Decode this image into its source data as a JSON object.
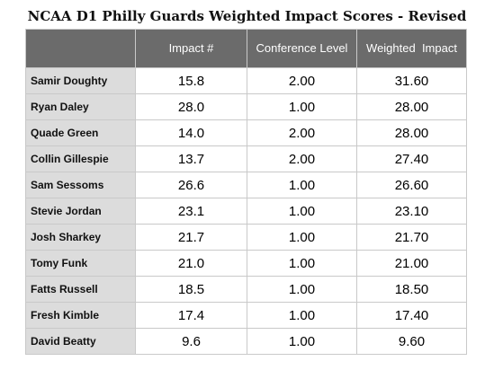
{
  "title": "NCAA D1 Philly Guards Weighted Impact Scores - Revised",
  "columns": [
    "",
    "Impact #",
    "Conference Level",
    "Weighted  Impact"
  ],
  "rows": [
    {
      "name": "Samir Doughty",
      "impact": "15.8",
      "level": "2.00",
      "weighted": "31.60"
    },
    {
      "name": "Ryan Daley",
      "impact": "28.0",
      "level": "1.00",
      "weighted": "28.00"
    },
    {
      "name": "Quade Green",
      "impact": "14.0",
      "level": "2.00",
      "weighted": "28.00"
    },
    {
      "name": "Collin Gillespie",
      "impact": "13.7",
      "level": "2.00",
      "weighted": "27.40"
    },
    {
      "name": "Sam Sessoms",
      "impact": "26.6",
      "level": "1.00",
      "weighted": "26.60"
    },
    {
      "name": "Stevie Jordan",
      "impact": "23.1",
      "level": "1.00",
      "weighted": "23.10"
    },
    {
      "name": "Josh Sharkey",
      "impact": "21.7",
      "level": "1.00",
      "weighted": "21.70"
    },
    {
      "name": "Tomy Funk",
      "impact": "21.0",
      "level": "1.00",
      "weighted": "21.00"
    },
    {
      "name": "Fatts Russell",
      "impact": "18.5",
      "level": "1.00",
      "weighted": "18.50"
    },
    {
      "name": "Fresh Kimble",
      "impact": "17.4",
      "level": "1.00",
      "weighted": "17.40"
    },
    {
      "name": "David Beatty",
      "impact": "9.6",
      "level": "1.00",
      "weighted": "9.60"
    }
  ]
}
